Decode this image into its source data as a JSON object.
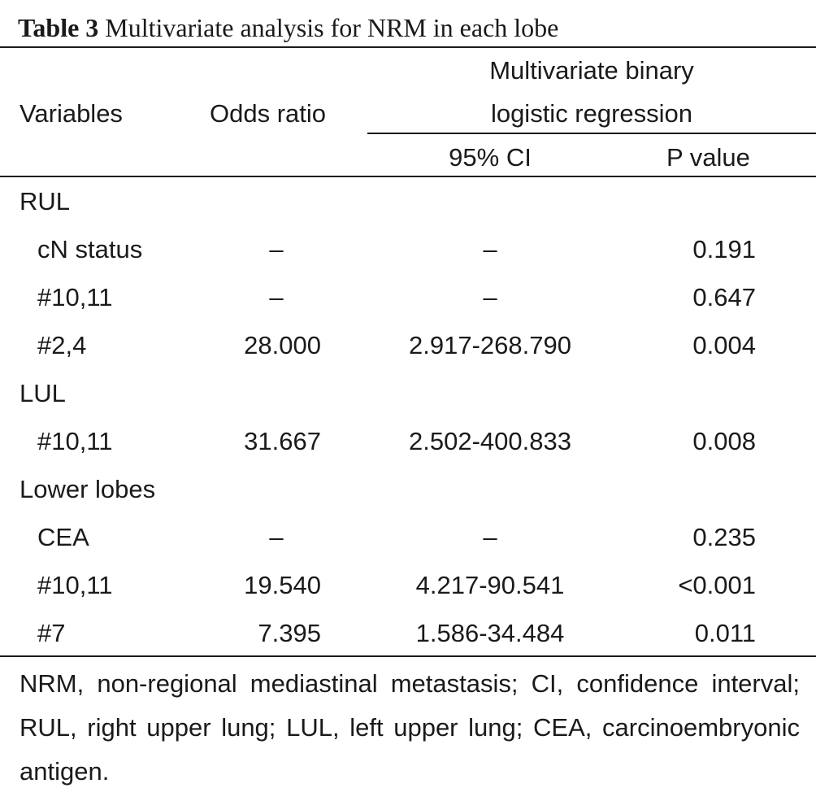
{
  "table": {
    "title_label": "Table 3",
    "title_text": "Multivariate analysis for NRM in each lobe",
    "headers": {
      "variables": "Variables",
      "odds_ratio": "Odds ratio",
      "group_line1": "Multivariate binary",
      "group_line2": "logistic regression",
      "ci": "95% CI",
      "p_value": "P value"
    },
    "sections": [
      {
        "name": "RUL",
        "rows": [
          {
            "variable": "cN status",
            "odds_ratio": "–",
            "ci": "–",
            "p": "0.191"
          },
          {
            "variable": "#10,11",
            "odds_ratio": "–",
            "ci": "–",
            "p": "0.647"
          },
          {
            "variable": "#2,4",
            "odds_ratio": "28.000",
            "ci": "2.917-268.790",
            "p": "0.004"
          }
        ]
      },
      {
        "name": "LUL",
        "rows": [
          {
            "variable": "#10,11",
            "odds_ratio": "31.667",
            "ci": "2.502-400.833",
            "p": "0.008"
          }
        ]
      },
      {
        "name": "Lower lobes",
        "rows": [
          {
            "variable": "CEA",
            "odds_ratio": "–",
            "ci": "–",
            "p": "0.235"
          },
          {
            "variable": "#10,11",
            "odds_ratio": "19.540",
            "ci": "4.217-90.541",
            "p": "<0.001"
          },
          {
            "variable": "#7",
            "odds_ratio": "7.395",
            "ci": "1.586-34.484",
            "p": "0.011"
          }
        ]
      }
    ],
    "footnote": "NRM, non-regional mediastinal metastasis; CI, confidence interval; RUL, right upper lung; LUL, left upper lung; CEA, carcinoembryonic antigen."
  }
}
